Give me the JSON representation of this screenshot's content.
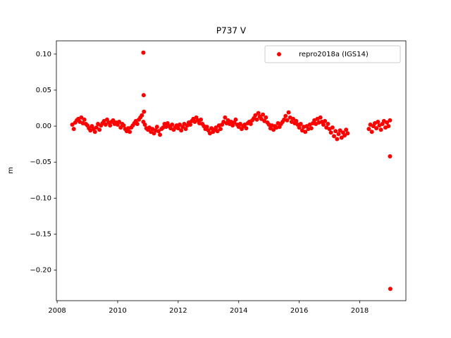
{
  "chart_data": {
    "type": "scatter",
    "title": "P737 V",
    "y_label": "m",
    "legend": "upper right",
    "grid": false,
    "xlim": [
      2007.975,
      2019.525
    ],
    "ylim": [
      -0.2424,
      0.1184
    ],
    "xticks": [
      2008,
      2010,
      2012,
      2014,
      2016,
      2018
    ],
    "yticks": [
      {
        "value": 0.1,
        "label": "0.10"
      },
      {
        "value": 0.05,
        "label": "0.05"
      },
      {
        "value": 0,
        "label": "0.00"
      },
      {
        "value": -0.05,
        "label": "−0.05"
      },
      {
        "value": -0.1,
        "label": "−0.10"
      },
      {
        "value": -0.15,
        "label": "−0.15"
      },
      {
        "value": -0.2,
        "label": "−0.20"
      }
    ],
    "series": [
      {
        "name": "repro2018a (IGS14)",
        "color": "#ff0000",
        "x": [
          2008.5,
          2008.55,
          2008.6,
          2008.65,
          2008.7,
          2008.75,
          2008.8,
          2008.85,
          2008.9,
          2008.95,
          2009.0,
          2009.05,
          2009.1,
          2009.15,
          2009.2,
          2009.25,
          2009.3,
          2009.35,
          2009.4,
          2009.45,
          2009.5,
          2009.55,
          2009.6,
          2009.65,
          2009.7,
          2009.75,
          2009.8,
          2009.85,
          2009.9,
          2009.95,
          2010.0,
          2010.05,
          2010.1,
          2010.15,
          2010.2,
          2010.25,
          2010.3,
          2010.35,
          2010.4,
          2010.45,
          2010.5,
          2010.55,
          2010.6,
          2010.65,
          2010.7,
          2010.75,
          2010.8,
          2010.85,
          2010.9,
          2010.95,
          2011.0,
          2011.05,
          2011.1,
          2011.15,
          2011.2,
          2011.25,
          2011.3,
          2011.35,
          2011.4,
          2011.45,
          2011.5,
          2011.55,
          2011.6,
          2011.65,
          2011.7,
          2011.75,
          2011.8,
          2011.85,
          2011.9,
          2011.95,
          2012.0,
          2012.05,
          2012.1,
          2012.15,
          2012.2,
          2012.25,
          2012.3,
          2012.35,
          2012.4,
          2012.45,
          2012.5,
          2012.55,
          2012.6,
          2012.65,
          2012.7,
          2012.75,
          2012.8,
          2012.85,
          2012.9,
          2012.95,
          2013.0,
          2013.05,
          2013.1,
          2013.15,
          2013.2,
          2013.25,
          2013.3,
          2013.35,
          2013.4,
          2013.45,
          2013.5,
          2013.55,
          2013.6,
          2013.65,
          2013.7,
          2013.75,
          2013.8,
          2013.85,
          2013.9,
          2013.95,
          2014.0,
          2014.05,
          2014.1,
          2014.15,
          2014.2,
          2014.25,
          2014.3,
          2014.35,
          2014.4,
          2014.45,
          2014.5,
          2014.55,
          2014.6,
          2014.65,
          2014.7,
          2014.75,
          2014.8,
          2014.85,
          2014.9,
          2014.95,
          2015.0,
          2015.05,
          2015.1,
          2015.15,
          2015.2,
          2015.25,
          2015.3,
          2015.35,
          2015.4,
          2015.45,
          2015.5,
          2015.55,
          2015.6,
          2015.65,
          2015.7,
          2015.75,
          2015.8,
          2015.85,
          2015.9,
          2015.95,
          2016.0,
          2016.05,
          2016.1,
          2016.15,
          2016.2,
          2016.25,
          2016.3,
          2016.35,
          2016.4,
          2016.45,
          2016.5,
          2016.55,
          2016.6,
          2016.65,
          2016.7,
          2016.75,
          2016.8,
          2016.85,
          2016.9,
          2016.95,
          2017.0,
          2017.05,
          2017.1,
          2017.15,
          2017.2,
          2017.25,
          2017.3,
          2017.35,
          2017.4,
          2017.45,
          2017.5,
          2017.55,
          2017.6,
          2018.3,
          2018.35,
          2018.4,
          2018.45,
          2018.5,
          2018.55,
          2018.6,
          2018.65,
          2018.7,
          2018.75,
          2018.8,
          2018.85,
          2018.9,
          2018.95,
          2019.0,
          2010.85,
          2010.86,
          2010.87,
          2019.0,
          2019.01
        ],
        "values": [
          0.002,
          -0.004,
          0.005,
          0.008,
          0.01,
          0.006,
          0.012,
          0.004,
          0.009,
          0.003,
          0.001,
          -0.003,
          -0.006,
          0.0,
          -0.004,
          -0.008,
          -0.002,
          0.003,
          -0.005,
          0.001,
          0.004,
          0.007,
          0.002,
          0.009,
          0.005,
          0.001,
          0.006,
          0.008,
          0.003,
          0.005,
          0.002,
          0.006,
          -0.002,
          0.003,
          0.001,
          -0.004,
          -0.007,
          -0.003,
          -0.008,
          -0.002,
          0.001,
          0.004,
          0.007,
          0.003,
          0.009,
          0.012,
          0.015,
          0.006,
          0.002,
          -0.003,
          -0.005,
          -0.002,
          -0.008,
          -0.004,
          -0.01,
          -0.006,
          -0.001,
          -0.007,
          -0.012,
          -0.004,
          -0.002,
          0.003,
          -0.001,
          0.004,
          0.0,
          -0.003,
          0.002,
          -0.005,
          -0.002,
          0.001,
          -0.003,
          0.002,
          -0.006,
          -0.001,
          0.003,
          -0.004,
          0.001,
          0.005,
          0.002,
          0.007,
          0.01,
          0.006,
          0.012,
          0.008,
          0.004,
          0.009,
          0.003,
          0.0,
          -0.004,
          -0.001,
          -0.006,
          -0.01,
          -0.003,
          -0.008,
          -0.005,
          -0.002,
          -0.007,
          0.001,
          -0.004,
          0.002,
          0.006,
          0.012,
          0.004,
          0.008,
          0.003,
          0.006,
          0.001,
          0.005,
          0.009,
          0.002,
          -0.001,
          0.003,
          -0.004,
          0.0,
          0.002,
          -0.003,
          0.004,
          0.006,
          0.003,
          0.008,
          0.011,
          0.015,
          0.009,
          0.018,
          0.013,
          0.01,
          0.016,
          0.007,
          0.012,
          0.005,
          0.002,
          -0.003,
          0.001,
          -0.005,
          0.0,
          -0.002,
          0.004,
          -0.001,
          0.003,
          0.006,
          0.009,
          0.014,
          0.008,
          0.019,
          0.012,
          0.006,
          0.01,
          0.004,
          0.007,
          0.002,
          -0.002,
          0.003,
          -0.006,
          -0.001,
          -0.008,
          0.0,
          -0.004,
          0.002,
          -0.003,
          0.004,
          0.008,
          0.003,
          0.01,
          0.005,
          0.012,
          0.006,
          0.002,
          0.007,
          -0.002,
          0.003,
          -0.004,
          -0.009,
          -0.002,
          -0.014,
          -0.007,
          -0.018,
          -0.011,
          -0.006,
          -0.016,
          -0.009,
          -0.013,
          -0.005,
          -0.01,
          -0.004,
          0.002,
          -0.008,
          0.0,
          0.004,
          -0.003,
          0.006,
          0.001,
          -0.005,
          0.003,
          0.007,
          -0.002,
          0.005,
          0.0,
          0.008,
          0.102,
          0.043,
          0.02,
          -0.042,
          -0.226
        ]
      }
    ]
  }
}
